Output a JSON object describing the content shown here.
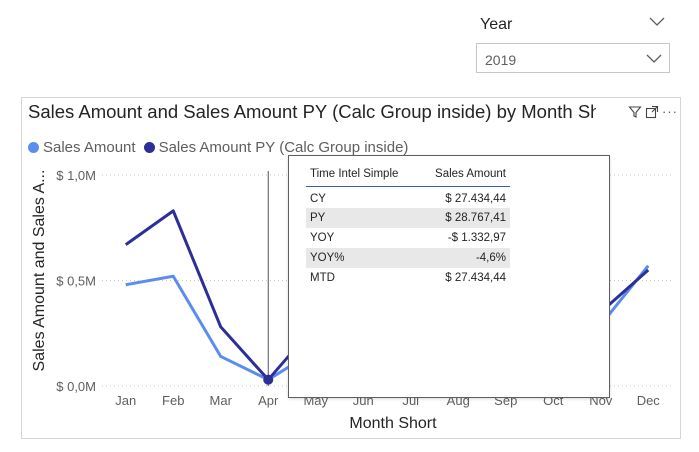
{
  "slicer": {
    "title": "Year",
    "value": "2019"
  },
  "visual": {
    "title": "Sales Amount and Sales Amount PY (Calc Group inside) by Month Short",
    "legend": [
      {
        "label": "Sales Amount",
        "color": "#5b8def"
      },
      {
        "label": "Sales Amount PY (Calc Group inside)",
        "color": "#2d2f99"
      }
    ],
    "header_icons": [
      "filter-icon",
      "focus-mode-icon",
      "more-options-icon"
    ]
  },
  "chart_data": {
    "type": "line",
    "categories": [
      "Jan",
      "Feb",
      "Mar",
      "Apr",
      "May",
      "Jun",
      "Jul",
      "Aug",
      "Sep",
      "Oct",
      "Nov",
      "Dec"
    ],
    "series": [
      {
        "name": "Sales Amount",
        "color": "#5b8def",
        "values": [
          0.48,
          0.52,
          0.14,
          0.03,
          0.17,
          0.22,
          0.25,
          0.27,
          0.29,
          0.32,
          0.29,
          0.57
        ]
      },
      {
        "name": "Sales Amount PY (Calc Group inside)",
        "color": "#2d2f99",
        "values": [
          0.67,
          0.83,
          0.28,
          0.03,
          0.29,
          0.31,
          0.33,
          0.35,
          0.36,
          0.38,
          0.35,
          0.55
        ]
      }
    ],
    "xlabel": "Month Short",
    "ylabel": "Sales Amount and Sales A...",
    "ylim": [
      0,
      1.0
    ],
    "yticks": [
      {
        "value": 0,
        "label": "$ 0,0M"
      },
      {
        "value": 0.5,
        "label": "$ 0,5M"
      },
      {
        "value": 1.0,
        "label": "$ 1,0M"
      }
    ],
    "grid": true,
    "legend": "top-left",
    "highlight_category": "Apr"
  },
  "tooltip": {
    "headers": [
      "Time Intel Simple",
      "Sales Amount"
    ],
    "rows": [
      {
        "label": "CY",
        "value": "$ 27.434,44"
      },
      {
        "label": "PY",
        "value": "$ 28.767,41"
      },
      {
        "label": "YOY",
        "value": "-$ 1.332,97"
      },
      {
        "label": "YOY%",
        "value": "-4,6%"
      },
      {
        "label": "MTD",
        "value": "$ 27.434,44"
      }
    ]
  }
}
